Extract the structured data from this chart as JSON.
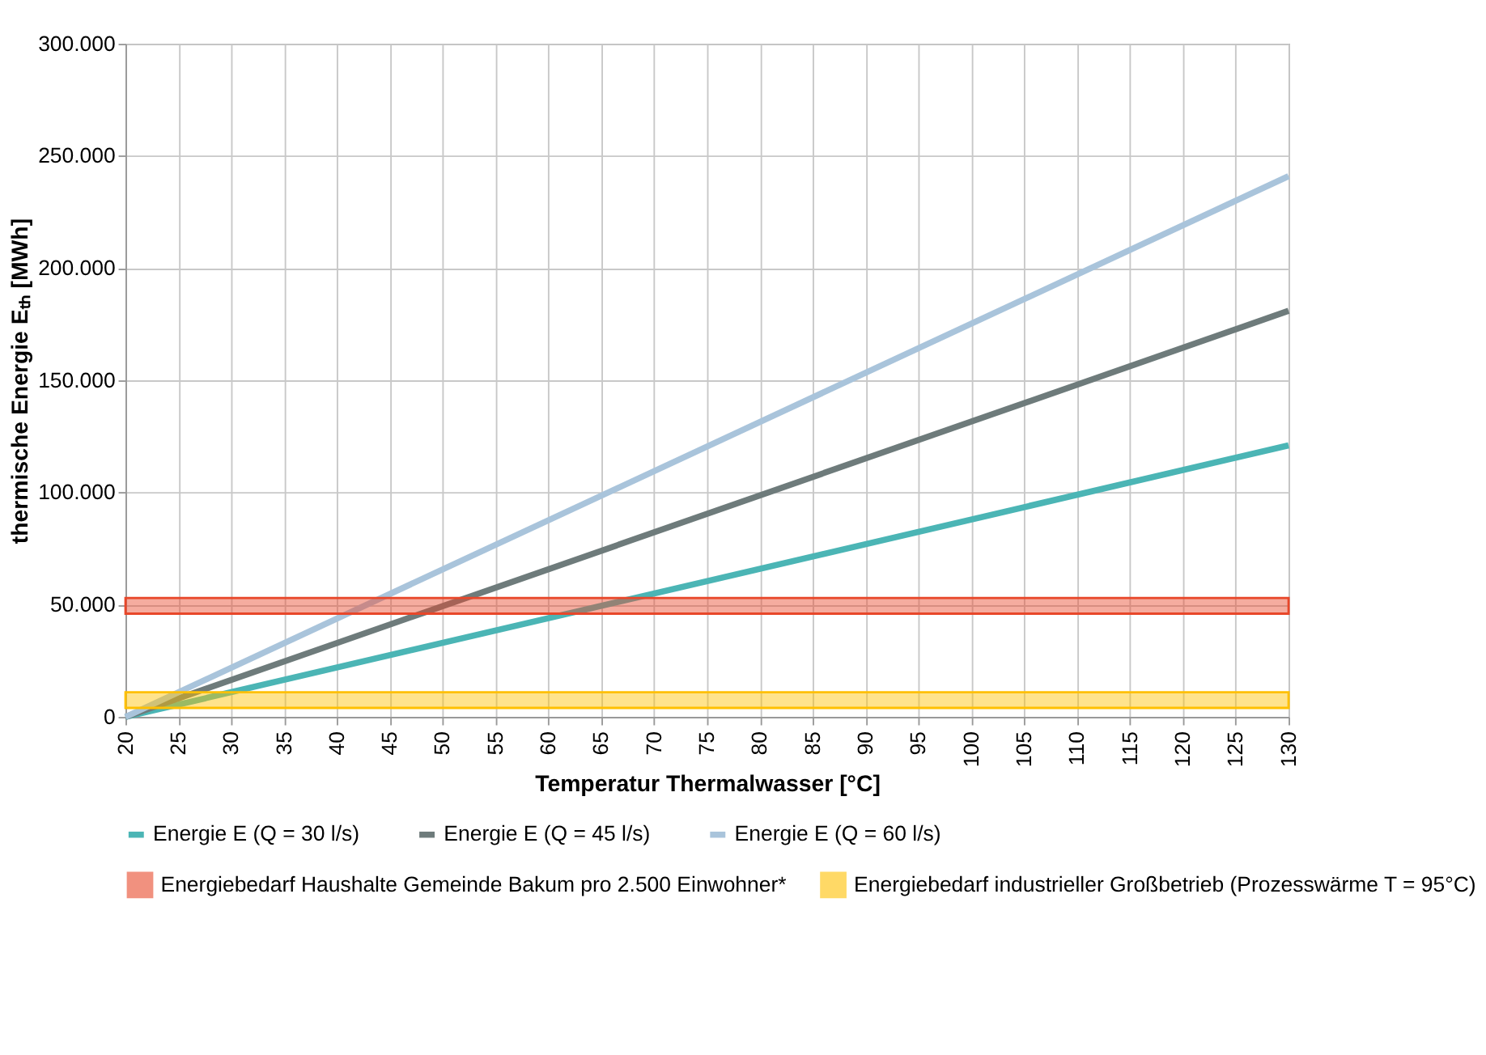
{
  "chart_data": {
    "type": "line",
    "xlabel": "Temperatur Thermalwasser [°C]",
    "ylabel": "thermische Energie Eₜₕ [MWh]",
    "xlim": [
      20,
      130
    ],
    "xticks": [
      20,
      25,
      30,
      35,
      40,
      45,
      50,
      55,
      60,
      65,
      70,
      75,
      80,
      85,
      90,
      95,
      100,
      105,
      110,
      115,
      120,
      125,
      130
    ],
    "ylim": [
      0,
      300000
    ],
    "yticks": [
      0,
      {
        "value": 50000,
        "label": "50.000"
      },
      {
        "value": 100000,
        "label": "100.000"
      },
      {
        "value": 150000,
        "label": "150.000"
      },
      {
        "value": 200000,
        "label": "200.000"
      },
      {
        "value": 250000,
        "label": "250.000"
      },
      {
        "value": 300000,
        "label": "300.000"
      }
    ],
    "x": [
      20,
      130
    ],
    "series": [
      {
        "name": "Energie E (Q = 30 l/s)",
        "color": "#4bb5b5",
        "values": [
          0,
          121000
        ]
      },
      {
        "name": "Energie E (Q = 45 l/s)",
        "color": "#6e7b7b",
        "values": [
          0,
          181000
        ]
      },
      {
        "name": "Energie E (Q = 60 l/s)",
        "color": "#a9c4db",
        "values": [
          0,
          241000
        ]
      }
    ],
    "bands": [
      {
        "axis": "y",
        "from": 46000,
        "to": 53000,
        "label": "Energiebedarf Haushalte Gemeinde Bakum pro 2.500 Einwohner*",
        "color": "#e8472a"
      },
      {
        "axis": "y",
        "from": 4000,
        "to": 11000,
        "label": "Energiebedarf industrieller Großbetrieb (Prozesswärme T = 95°C)",
        "color": "#ffc000"
      }
    ],
    "grid": true,
    "legend": "bottom"
  }
}
